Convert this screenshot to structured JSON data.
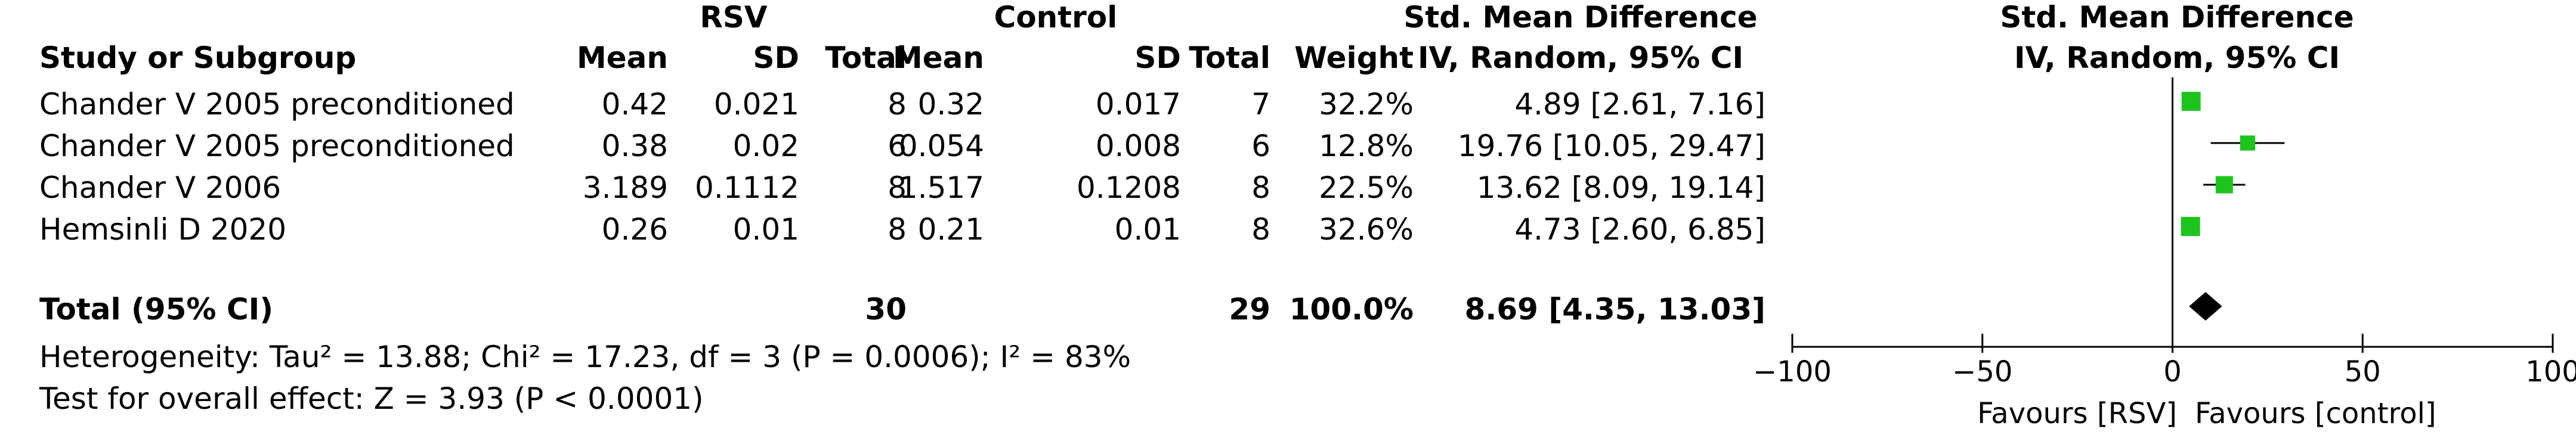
{
  "headers": {
    "group1": "RSV",
    "group2": "Control",
    "effect_left_1": "Std. Mean Difference",
    "effect_left_2": "IV, Random, 95% CI",
    "effect_right_1": "Std. Mean Difference",
    "effect_right_2": "IV, Random, 95% CI",
    "study": "Study or Subgroup",
    "mean1": "Mean",
    "sd1": "SD",
    "total1": "Total",
    "mean2": "Mean",
    "sd2": "SD",
    "total2": "Total",
    "weight": "Weight"
  },
  "studies": [
    {
      "name": "Chander V 2005 preconditioned",
      "mean1": "0.42",
      "sd1": "0.021",
      "total1": "8",
      "mean2": "0.32",
      "sd2": "0.017",
      "total2": "7",
      "weight": "32.2%",
      "ci": "4.89 [2.61, 7.16]"
    },
    {
      "name": "Chander V 2005 preconditioned",
      "mean1": "0.38",
      "sd1": "0.02",
      "total1": "6",
      "mean2": "0.054",
      "sd2": "0.008",
      "total2": "6",
      "weight": "12.8%",
      "ci": "19.76 [10.05, 29.47]"
    },
    {
      "name": "Chander V 2006",
      "mean1": "3.189",
      "sd1": "0.1112",
      "total1": "8",
      "mean2": "1.517",
      "sd2": "0.1208",
      "total2": "8",
      "weight": "22.5%",
      "ci": "13.62 [8.09, 19.14]"
    },
    {
      "name": "Hemsinli D 2020",
      "mean1": "0.26",
      "sd1": "0.01",
      "total1": "8",
      "mean2": "0.21",
      "sd2": "0.01",
      "total2": "8",
      "weight": "32.6%",
      "ci": "4.73 [2.60, 6.85]"
    }
  ],
  "total": {
    "label": "Total (95% CI)",
    "total1": "30",
    "total2": "29",
    "weight": "100.0%",
    "ci": "8.69 [4.35, 13.03]"
  },
  "heterogeneity": "Heterogeneity: Tau² = 13.88; Chi² = 17.23, df = 3 (P = 0.0006); I² = 83%",
  "overall_effect": "Test for overall effect: Z = 3.93 (P < 0.0001)",
  "favours_left": "Favours [RSV]",
  "favours_right": "Favours [control]",
  "colors": {
    "study_marker": "#1ec41e",
    "summary_marker": "#000000"
  },
  "chart_data": {
    "type": "forest",
    "xlim": [
      -100,
      100
    ],
    "x_ticks": [
      -100,
      -50,
      0,
      50,
      100
    ],
    "x_tick_labels": [
      "−100",
      "−50",
      "0",
      "50",
      "100"
    ],
    "null_line": 0,
    "studies": [
      {
        "estimate": 4.89,
        "lower": 2.61,
        "upper": 7.16,
        "weight": 32.2
      },
      {
        "estimate": 19.76,
        "lower": 10.05,
        "upper": 29.47,
        "weight": 12.8
      },
      {
        "estimate": 13.62,
        "lower": 8.09,
        "upper": 19.14,
        "weight": 22.5
      },
      {
        "estimate": 4.73,
        "lower": 2.6,
        "upper": 6.85,
        "weight": 32.6
      }
    ],
    "summary": {
      "estimate": 8.69,
      "lower": 4.35,
      "upper": 13.03
    }
  }
}
